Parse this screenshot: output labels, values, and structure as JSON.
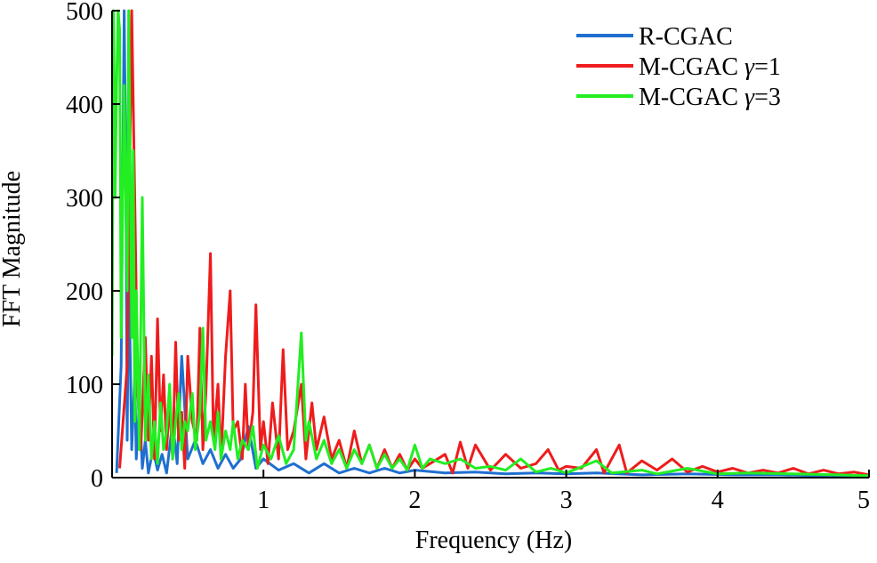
{
  "chart_data": {
    "type": "line",
    "title": "",
    "xlabel": "Frequency (Hz)",
    "ylabel": "FFT Magnitude",
    "xlim": [
      0,
      5
    ],
    "ylim": [
      0,
      500
    ],
    "xticks": [
      1,
      2,
      3,
      4,
      5
    ],
    "yticks": [
      0,
      100,
      200,
      300,
      400,
      500
    ],
    "xtick_labels": [
      "1",
      "2",
      "3",
      "4",
      "5"
    ],
    "ytick_labels": [
      "0",
      "100",
      "200",
      "300",
      "400",
      "500"
    ],
    "grid": false,
    "legend_position": "top-right",
    "legend": {
      "entries": [
        {
          "series": 0,
          "prefix": "R-CGAC",
          "greek": "",
          "suffix": ""
        },
        {
          "series": 1,
          "prefix": "M-CGAC ",
          "greek": "γ",
          "suffix": "=1"
        },
        {
          "series": 2,
          "prefix": "M-CGAC ",
          "greek": "γ",
          "suffix": "=3"
        }
      ]
    },
    "series": [
      {
        "name": "R-CGAC",
        "color": "#1f6fd0",
        "points": [
          [
            0.03,
            5
          ],
          [
            0.06,
            120
          ],
          [
            0.08,
            500
          ],
          [
            0.09,
            350
          ],
          [
            0.1,
            40
          ],
          [
            0.11,
            240
          ],
          [
            0.12,
            130
          ],
          [
            0.13,
            30
          ],
          [
            0.15,
            110
          ],
          [
            0.16,
            20
          ],
          [
            0.18,
            80
          ],
          [
            0.2,
            10
          ],
          [
            0.22,
            40
          ],
          [
            0.24,
            5
          ],
          [
            0.27,
            30
          ],
          [
            0.3,
            8
          ],
          [
            0.33,
            25
          ],
          [
            0.36,
            5
          ],
          [
            0.4,
            60
          ],
          [
            0.43,
            15
          ],
          [
            0.46,
            130
          ],
          [
            0.5,
            20
          ],
          [
            0.55,
            40
          ],
          [
            0.6,
            15
          ],
          [
            0.65,
            30
          ],
          [
            0.7,
            10
          ],
          [
            0.75,
            25
          ],
          [
            0.8,
            10
          ],
          [
            0.85,
            20
          ],
          [
            0.9,
            55
          ],
          [
            0.95,
            10
          ],
          [
            1.0,
            20
          ],
          [
            1.1,
            8
          ],
          [
            1.2,
            15
          ],
          [
            1.3,
            5
          ],
          [
            1.4,
            15
          ],
          [
            1.5,
            5
          ],
          [
            1.6,
            10
          ],
          [
            1.7,
            5
          ],
          [
            1.8,
            10
          ],
          [
            1.9,
            5
          ],
          [
            2.0,
            8
          ],
          [
            2.2,
            5
          ],
          [
            2.4,
            6
          ],
          [
            2.6,
            4
          ],
          [
            2.8,
            5
          ],
          [
            3.0,
            4
          ],
          [
            3.2,
            5
          ],
          [
            3.5,
            3
          ],
          [
            3.8,
            4
          ],
          [
            4.1,
            3
          ],
          [
            4.4,
            3
          ],
          [
            4.7,
            2
          ],
          [
            5.0,
            2
          ]
        ]
      },
      {
        "name": "M-CGAC γ=1",
        "color": "#ee1c1c",
        "points": [
          [
            0.05,
            10
          ],
          [
            0.1,
            120
          ],
          [
            0.13,
            500
          ],
          [
            0.15,
            300
          ],
          [
            0.17,
            90
          ],
          [
            0.19,
            30
          ],
          [
            0.22,
            150
          ],
          [
            0.24,
            40
          ],
          [
            0.26,
            130
          ],
          [
            0.28,
            20
          ],
          [
            0.3,
            170
          ],
          [
            0.32,
            50
          ],
          [
            0.34,
            110
          ],
          [
            0.36,
            30
          ],
          [
            0.38,
            80
          ],
          [
            0.4,
            20
          ],
          [
            0.42,
            145
          ],
          [
            0.44,
            40
          ],
          [
            0.46,
            70
          ],
          [
            0.48,
            10
          ],
          [
            0.5,
            130
          ],
          [
            0.53,
            60
          ],
          [
            0.56,
            40
          ],
          [
            0.58,
            160
          ],
          [
            0.6,
            30
          ],
          [
            0.62,
            90
          ],
          [
            0.65,
            240
          ],
          [
            0.67,
            40
          ],
          [
            0.7,
            100
          ],
          [
            0.72,
            20
          ],
          [
            0.75,
            130
          ],
          [
            0.78,
            200
          ],
          [
            0.8,
            50
          ],
          [
            0.83,
            60
          ],
          [
            0.86,
            20
          ],
          [
            0.88,
            100
          ],
          [
            0.9,
            30
          ],
          [
            0.93,
            70
          ],
          [
            0.95,
            185
          ],
          [
            0.98,
            30
          ],
          [
            1.0,
            60
          ],
          [
            1.03,
            15
          ],
          [
            1.06,
            80
          ],
          [
            1.1,
            20
          ],
          [
            1.13,
            137
          ],
          [
            1.16,
            30
          ],
          [
            1.2,
            50
          ],
          [
            1.25,
            100
          ],
          [
            1.28,
            20
          ],
          [
            1.32,
            80
          ],
          [
            1.35,
            30
          ],
          [
            1.4,
            65
          ],
          [
            1.45,
            20
          ],
          [
            1.5,
            40
          ],
          [
            1.55,
            10
          ],
          [
            1.6,
            50
          ],
          [
            1.65,
            15
          ],
          [
            1.7,
            35
          ],
          [
            1.75,
            10
          ],
          [
            1.8,
            30
          ],
          [
            1.85,
            10
          ],
          [
            1.9,
            25
          ],
          [
            1.95,
            8
          ],
          [
            2.0,
            20
          ],
          [
            2.05,
            10
          ],
          [
            2.1,
            15
          ],
          [
            2.2,
            25
          ],
          [
            2.25,
            5
          ],
          [
            2.3,
            38
          ],
          [
            2.35,
            10
          ],
          [
            2.4,
            35
          ],
          [
            2.5,
            8
          ],
          [
            2.6,
            25
          ],
          [
            2.7,
            10
          ],
          [
            2.8,
            15
          ],
          [
            2.88,
            30
          ],
          [
            2.95,
            8
          ],
          [
            3.0,
            12
          ],
          [
            3.1,
            10
          ],
          [
            3.2,
            30
          ],
          [
            3.25,
            5
          ],
          [
            3.35,
            35
          ],
          [
            3.4,
            5
          ],
          [
            3.5,
            18
          ],
          [
            3.6,
            8
          ],
          [
            3.7,
            20
          ],
          [
            3.8,
            6
          ],
          [
            3.9,
            12
          ],
          [
            4.0,
            6
          ],
          [
            4.1,
            10
          ],
          [
            4.2,
            5
          ],
          [
            4.3,
            8
          ],
          [
            4.4,
            5
          ],
          [
            4.5,
            10
          ],
          [
            4.6,
            4
          ],
          [
            4.7,
            8
          ],
          [
            4.8,
            4
          ],
          [
            4.9,
            6
          ],
          [
            5.0,
            3
          ]
        ]
      },
      {
        "name": "M-CGAC γ=3",
        "color": "#22ee22",
        "points": [
          [
            0.0,
            130
          ],
          [
            0.01,
            500
          ],
          [
            0.02,
            300
          ],
          [
            0.03,
            420
          ],
          [
            0.04,
            500
          ],
          [
            0.05,
            480
          ],
          [
            0.06,
            150
          ],
          [
            0.08,
            420
          ],
          [
            0.1,
            200
          ],
          [
            0.11,
            500
          ],
          [
            0.12,
            330
          ],
          [
            0.13,
            150
          ],
          [
            0.14,
            350
          ],
          [
            0.15,
            60
          ],
          [
            0.16,
            200
          ],
          [
            0.18,
            30
          ],
          [
            0.2,
            300
          ],
          [
            0.22,
            40
          ],
          [
            0.24,
            110
          ],
          [
            0.26,
            20
          ],
          [
            0.28,
            60
          ],
          [
            0.3,
            15
          ],
          [
            0.32,
            80
          ],
          [
            0.34,
            30
          ],
          [
            0.36,
            50
          ],
          [
            0.38,
            100
          ],
          [
            0.4,
            20
          ],
          [
            0.42,
            60
          ],
          [
            0.44,
            90
          ],
          [
            0.46,
            30
          ],
          [
            0.48,
            60
          ],
          [
            0.5,
            50
          ],
          [
            0.53,
            90
          ],
          [
            0.55,
            30
          ],
          [
            0.58,
            70
          ],
          [
            0.6,
            160
          ],
          [
            0.62,
            40
          ],
          [
            0.65,
            60
          ],
          [
            0.68,
            30
          ],
          [
            0.7,
            70
          ],
          [
            0.72,
            20
          ],
          [
            0.75,
            50
          ],
          [
            0.78,
            30
          ],
          [
            0.8,
            60
          ],
          [
            0.83,
            20
          ],
          [
            0.86,
            40
          ],
          [
            0.9,
            30
          ],
          [
            0.93,
            55
          ],
          [
            0.96,
            10
          ],
          [
            1.0,
            35
          ],
          [
            1.05,
            20
          ],
          [
            1.1,
            45
          ],
          [
            1.15,
            15
          ],
          [
            1.2,
            30
          ],
          [
            1.25,
            155
          ],
          [
            1.28,
            40
          ],
          [
            1.3,
            60
          ],
          [
            1.35,
            20
          ],
          [
            1.4,
            40
          ],
          [
            1.45,
            15
          ],
          [
            1.5,
            30
          ],
          [
            1.55,
            10
          ],
          [
            1.6,
            30
          ],
          [
            1.65,
            15
          ],
          [
            1.7,
            35
          ],
          [
            1.75,
            10
          ],
          [
            1.8,
            25
          ],
          [
            1.85,
            10
          ],
          [
            1.9,
            20
          ],
          [
            1.95,
            8
          ],
          [
            2.0,
            35
          ],
          [
            2.05,
            10
          ],
          [
            2.1,
            20
          ],
          [
            2.2,
            15
          ],
          [
            2.3,
            20
          ],
          [
            2.4,
            10
          ],
          [
            2.5,
            12
          ],
          [
            2.6,
            8
          ],
          [
            2.7,
            20
          ],
          [
            2.8,
            6
          ],
          [
            2.9,
            10
          ],
          [
            3.0,
            5
          ],
          [
            3.2,
            18
          ],
          [
            3.3,
            5
          ],
          [
            3.5,
            8
          ],
          [
            3.6,
            4
          ],
          [
            3.8,
            10
          ],
          [
            4.0,
            4
          ],
          [
            4.2,
            5
          ],
          [
            4.5,
            4
          ],
          [
            4.8,
            3
          ],
          [
            5.0,
            2
          ]
        ]
      }
    ]
  }
}
